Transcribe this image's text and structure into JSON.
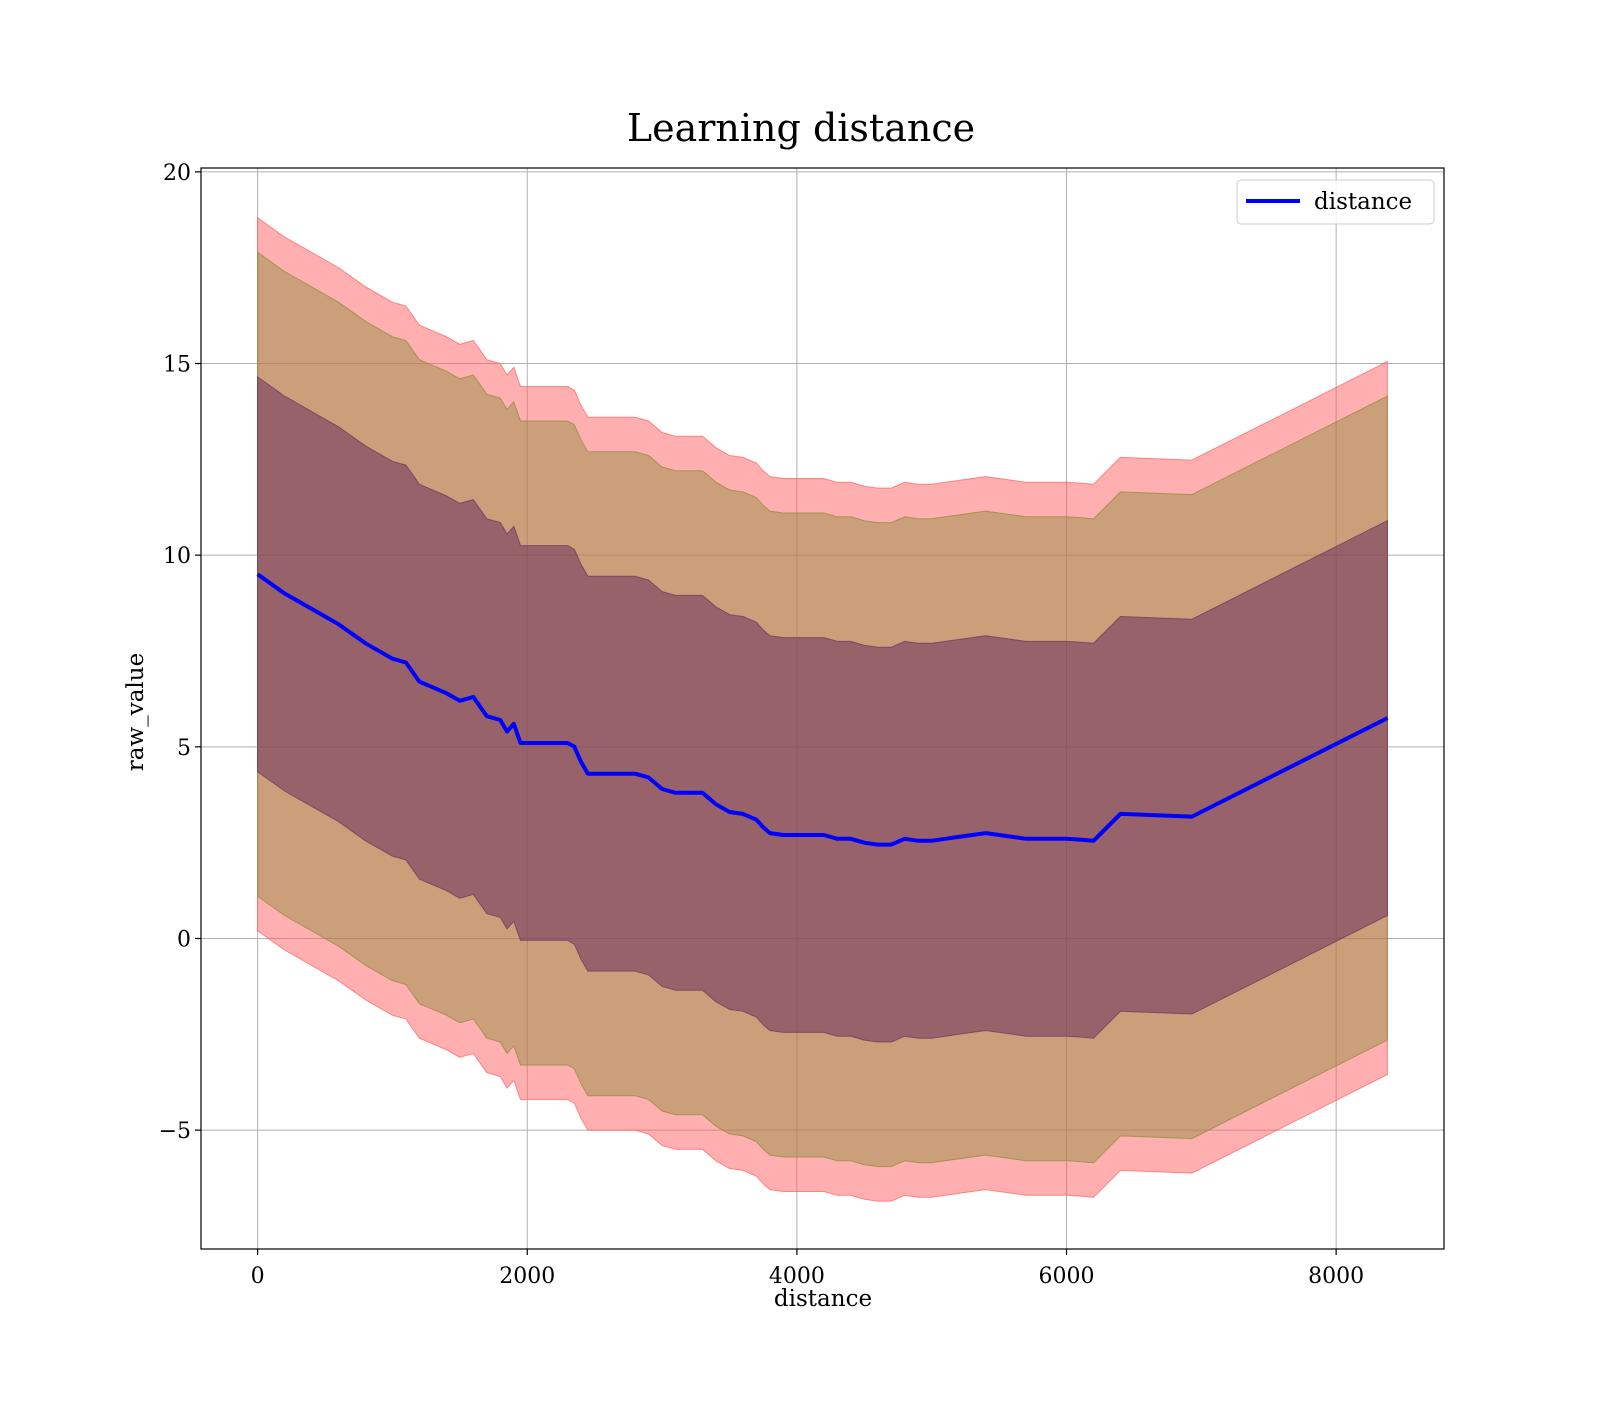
{
  "chart_data": {
    "type": "line",
    "title": "Learning distance",
    "xlabel": "distance",
    "ylabel": "raw_value",
    "xlim": [
      -420,
      8800
    ],
    "ylim": [
      -8.1,
      20.1
    ],
    "xticks": [
      0,
      2000,
      4000,
      6000,
      8000
    ],
    "xtick_labels": [
      "0",
      "2000",
      "4000",
      "6000",
      "8000"
    ],
    "yticks": [
      -5,
      0,
      5,
      10,
      15,
      20
    ],
    "ytick_labels": [
      "−5",
      "0",
      "5",
      "10",
      "15",
      "20"
    ],
    "grid": true,
    "legend": {
      "position": "upper right",
      "entries": [
        "distance"
      ]
    },
    "series": [
      {
        "name": "distance",
        "color": "#0000ff",
        "x": [
          0,
          200,
          400,
          600,
          800,
          1000,
          1100,
          1200,
          1400,
          1500,
          1600,
          1700,
          1800,
          1850,
          1900,
          1950,
          2000,
          2100,
          2200,
          2300,
          2350,
          2400,
          2450,
          2500,
          2600,
          2700,
          2800,
          2900,
          3000,
          3100,
          3200,
          3300,
          3400,
          3500,
          3600,
          3700,
          3750,
          3800,
          3900,
          4000,
          4100,
          4200,
          4300,
          4400,
          4500,
          4600,
          4700,
          4800,
          4900,
          5000,
          5100,
          5200,
          5300,
          5400,
          5500,
          5600,
          5700,
          5800,
          5900,
          6000,
          6100,
          6200,
          6400,
          6930,
          8380
        ],
        "y": [
          9.5,
          9.0,
          8.6,
          8.2,
          7.7,
          7.3,
          7.2,
          6.7,
          6.4,
          6.2,
          6.3,
          5.8,
          5.7,
          5.4,
          5.6,
          5.1,
          5.1,
          5.1,
          5.1,
          5.1,
          5.0,
          4.6,
          4.3,
          4.3,
          4.3,
          4.3,
          4.3,
          4.2,
          3.9,
          3.8,
          3.8,
          3.8,
          3.5,
          3.3,
          3.25,
          3.1,
          2.9,
          2.75,
          2.7,
          2.7,
          2.7,
          2.7,
          2.6,
          2.6,
          2.5,
          2.45,
          2.45,
          2.6,
          2.55,
          2.55,
          2.6,
          2.65,
          2.7,
          2.75,
          2.7,
          2.65,
          2.6,
          2.6,
          2.6,
          2.6,
          2.58,
          2.55,
          3.25,
          3.18,
          5.75
        ]
      }
    ],
    "bands": [
      {
        "name": "",
        "offset": 9.3,
        "color": "#ff6060",
        "opacity": 0.5
      },
      {
        "name": "",
        "offset": 8.4,
        "color": "#8b8b3a",
        "opacity": 0.45
      },
      {
        "name": "",
        "offset": 5.15,
        "color": "#70305e",
        "opacity": 0.55
      }
    ]
  }
}
